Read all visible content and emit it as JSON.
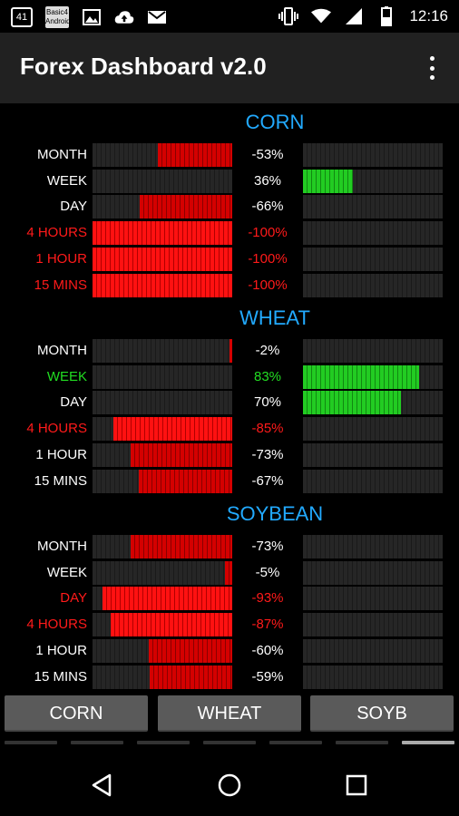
{
  "status_bar": {
    "left_icons": [
      "notification-41-icon",
      "basic-android-icon",
      "image-icon",
      "cloud-upload-icon",
      "gmail-icon"
    ],
    "box_label": "41",
    "basic_label": "Basic4 Android",
    "right_icons": [
      "vibrate-icon",
      "wifi-icon",
      "signal-icon",
      "battery-icon"
    ],
    "time": "12:16"
  },
  "app_bar": {
    "title": "Forex Dashboard v2.0"
  },
  "sections": [
    {
      "title": "CORN",
      "rows": [
        {
          "label": "MONTH",
          "pct": "-53%",
          "value": -53,
          "color": "white"
        },
        {
          "label": "WEEK",
          "pct": "36%",
          "value": 36,
          "color": "white"
        },
        {
          "label": "DAY",
          "pct": "-66%",
          "value": -66,
          "color": "white"
        },
        {
          "label": "4 HOURS",
          "pct": "-100%",
          "value": -100,
          "color": "red"
        },
        {
          "label": "1 HOUR",
          "pct": "-100%",
          "value": -100,
          "color": "red"
        },
        {
          "label": "15 MINS",
          "pct": "-100%",
          "value": -100,
          "color": "red"
        }
      ]
    },
    {
      "title": "WHEAT",
      "rows": [
        {
          "label": "MONTH",
          "pct": "-2%",
          "value": -2,
          "color": "white"
        },
        {
          "label": "WEEK",
          "pct": "83%",
          "value": 83,
          "color": "green"
        },
        {
          "label": "DAY",
          "pct": "70%",
          "value": 70,
          "color": "white"
        },
        {
          "label": "4 HOURS",
          "pct": "-85%",
          "value": -85,
          "color": "red"
        },
        {
          "label": "1 HOUR",
          "pct": "-73%",
          "value": -73,
          "color": "white"
        },
        {
          "label": "15 MINS",
          "pct": "-67%",
          "value": -67,
          "color": "white"
        }
      ]
    },
    {
      "title": "SOYBEAN",
      "rows": [
        {
          "label": "MONTH",
          "pct": "-73%",
          "value": -73,
          "color": "white"
        },
        {
          "label": "WEEK",
          "pct": "-5%",
          "value": -5,
          "color": "white"
        },
        {
          "label": "DAY",
          "pct": "-93%",
          "value": -93,
          "color": "red"
        },
        {
          "label": "4 HOURS",
          "pct": "-87%",
          "value": -87,
          "color": "red"
        },
        {
          "label": "1 HOUR",
          "pct": "-60%",
          "value": -60,
          "color": "white"
        },
        {
          "label": "15 MINS",
          "pct": "-59%",
          "value": -59,
          "color": "white"
        }
      ]
    }
  ],
  "tabs": [
    "CORN",
    "WHEAT",
    "SOYB"
  ],
  "page_indicator": {
    "count": 7,
    "active": 6
  },
  "nav_bar": [
    "back-icon",
    "home-icon",
    "recents-icon"
  ],
  "colors": {
    "title_blue": "#22aaff",
    "negative_red": "#d40000",
    "positive_green": "#22cc22",
    "alert_red": "#ff1a1a"
  }
}
